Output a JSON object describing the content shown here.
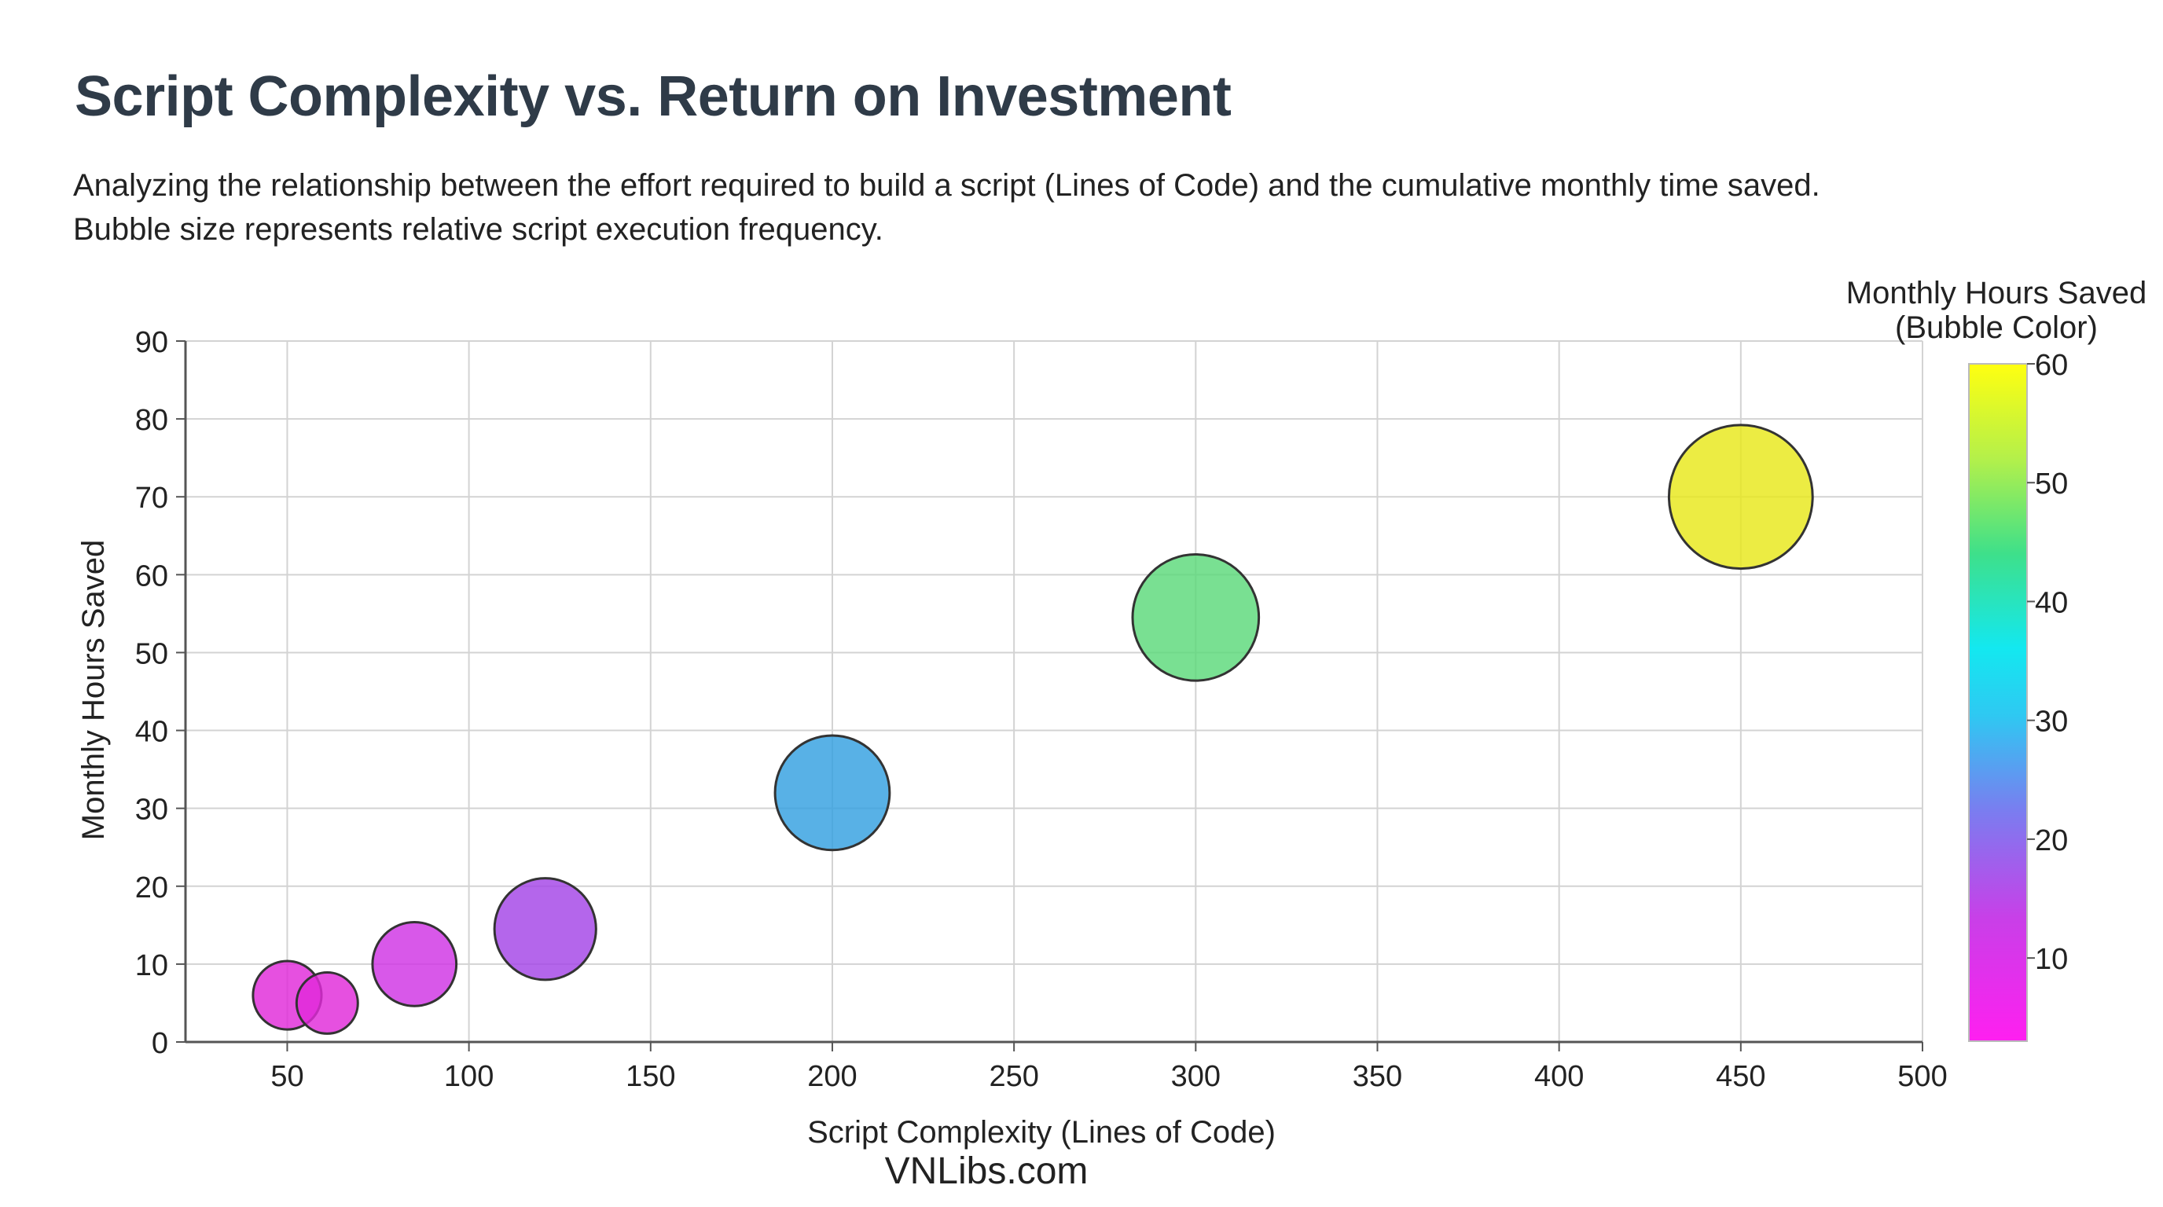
{
  "chart_data": {
    "type": "scatter",
    "title": "Script Complexity vs. Return on Investment",
    "subtitle": "Analyzing the relationship between the effort required to build a script (Lines of Code) and the cumulative monthly time saved. Bubble size represents relative script execution frequency.",
    "xlabel": "Script Complexity (Lines of Code)",
    "ylabel": "Monthly Hours Saved",
    "xlim": [
      22,
      500
    ],
    "ylim": [
      0,
      90
    ],
    "xticks": [
      50,
      100,
      150,
      200,
      250,
      300,
      350,
      400,
      450,
      500
    ],
    "yticks": [
      0,
      10,
      20,
      30,
      40,
      50,
      60,
      70,
      80,
      90
    ],
    "grid": true,
    "colorbar": {
      "title_lines": [
        "Monthly Hours Saved",
        "(Bubble Color)"
      ],
      "range": [
        3,
        60
      ],
      "ticks": [
        10,
        20,
        30,
        40,
        50,
        60
      ]
    },
    "points": [
      {
        "x": 50,
        "y": 6,
        "size": 1,
        "color": "#e02ad9"
      },
      {
        "x": 61,
        "y": 5,
        "size": 0.8,
        "color": "#e02ad9"
      },
      {
        "x": 85,
        "y": 10,
        "size": 1.5,
        "color": "#cf33e4"
      },
      {
        "x": 121,
        "y": 14.5,
        "size": 2.2,
        "color": "#a444e6"
      },
      {
        "x": 200,
        "y": 32,
        "size": 2.8,
        "color": "#33a0e0"
      },
      {
        "x": 300,
        "y": 54.5,
        "size": 3.4,
        "color": "#5bd97a"
      },
      {
        "x": 450,
        "y": 70,
        "size": 4.4,
        "color": "#e8e81a"
      }
    ]
  },
  "watermark": "VNLibs.com"
}
